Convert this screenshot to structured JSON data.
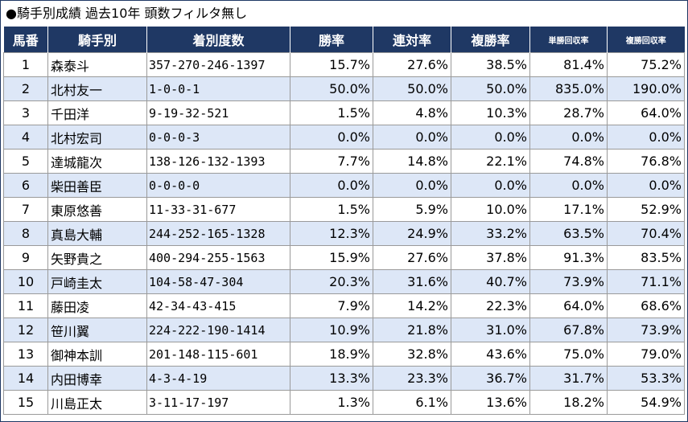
{
  "title": "●騎手別成績 過去10年 頭数フィルタ無し",
  "headers": [
    "馬番",
    "騎手別",
    "着別度数",
    "勝率",
    "連対率",
    "複勝率",
    "単勝回収率",
    "複勝回収率"
  ],
  "rows": [
    [
      "1",
      "森泰斗",
      "357-270-246-1397",
      "15.7%",
      "27.6%",
      "38.5%",
      "81.4%",
      "75.2%"
    ],
    [
      "2",
      "北村友一",
      "1-0-0-1",
      "50.0%",
      "50.0%",
      "50.0%",
      "835.0%",
      "190.0%"
    ],
    [
      "3",
      "千田洋",
      "9-19-32-521",
      "1.5%",
      "4.8%",
      "10.3%",
      "28.7%",
      "64.0%"
    ],
    [
      "4",
      "北村宏司",
      "0-0-0-3",
      "0.0%",
      "0.0%",
      "0.0%",
      "0.0%",
      "0.0%"
    ],
    [
      "5",
      "達城龍次",
      "138-126-132-1393",
      "7.7%",
      "14.8%",
      "22.1%",
      "74.8%",
      "76.8%"
    ],
    [
      "6",
      "柴田善臣",
      "0-0-0-0",
      "0.0%",
      "0.0%",
      "0.0%",
      "0.0%",
      "0.0%"
    ],
    [
      "7",
      "東原悠善",
      "11-33-31-677",
      "1.5%",
      "5.9%",
      "10.0%",
      "17.1%",
      "52.9%"
    ],
    [
      "8",
      "真島大輔",
      "244-252-165-1328",
      "12.3%",
      "24.9%",
      "33.2%",
      "63.5%",
      "70.4%"
    ],
    [
      "9",
      "矢野貴之",
      "400-294-255-1563",
      "15.9%",
      "27.6%",
      "37.8%",
      "91.3%",
      "83.5%"
    ],
    [
      "10",
      "戸崎圭太",
      "104-58-47-304",
      "20.3%",
      "31.6%",
      "40.7%",
      "73.9%",
      "71.1%"
    ],
    [
      "11",
      "藤田凌",
      "42-34-43-415",
      "7.9%",
      "14.2%",
      "22.3%",
      "64.0%",
      "68.6%"
    ],
    [
      "12",
      "笹川翼",
      "224-222-190-1414",
      "10.9%",
      "21.8%",
      "31.0%",
      "67.8%",
      "73.9%"
    ],
    [
      "13",
      "御神本訓",
      "201-148-115-601",
      "18.9%",
      "32.8%",
      "43.6%",
      "75.0%",
      "79.0%"
    ],
    [
      "14",
      "内田博幸",
      "4-3-4-19",
      "13.3%",
      "23.3%",
      "36.7%",
      "31.7%",
      "53.3%"
    ],
    [
      "15",
      "川島正太",
      "3-11-17-197",
      "1.3%",
      "6.1%",
      "13.6%",
      "18.2%",
      "54.9%"
    ]
  ],
  "colors": {
    "header_bg": "#1f3864",
    "alt_row_bg": "#dde7f7",
    "border": "#9a9a9a"
  }
}
